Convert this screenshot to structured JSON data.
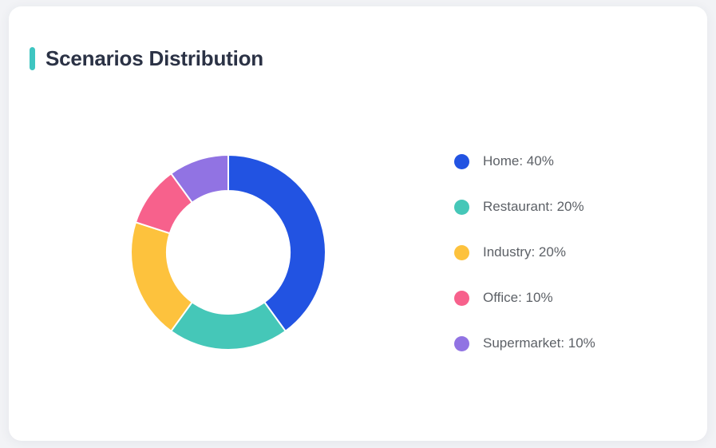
{
  "card": {
    "title": "Scenarios Distribution",
    "accent_color": "#3ec5c1",
    "background": "#ffffff",
    "page_background": "#f2f3f6"
  },
  "chart_data": {
    "type": "pie",
    "subtype": "donut",
    "title": "Scenarios Distribution",
    "categories": [
      "Home",
      "Restaurant",
      "Industry",
      "Office",
      "Supermarket"
    ],
    "values": [
      40,
      20,
      20,
      10,
      10
    ],
    "unit": "%",
    "colors": [
      "#2253e2",
      "#45c7b8",
      "#fdc23d",
      "#f7618c",
      "#9173e3"
    ],
    "legend_labels": [
      "Home: 40%",
      "Restaurant: 20%",
      "Industry: 20%",
      "Office: 10%",
      "Supermarket: 10%"
    ],
    "legend_position": "right",
    "start_angle_deg": 0,
    "direction": "clockwise",
    "outer_radius_px": 122,
    "inner_radius_px": 77,
    "segment_gap_color": "#ffffff"
  }
}
